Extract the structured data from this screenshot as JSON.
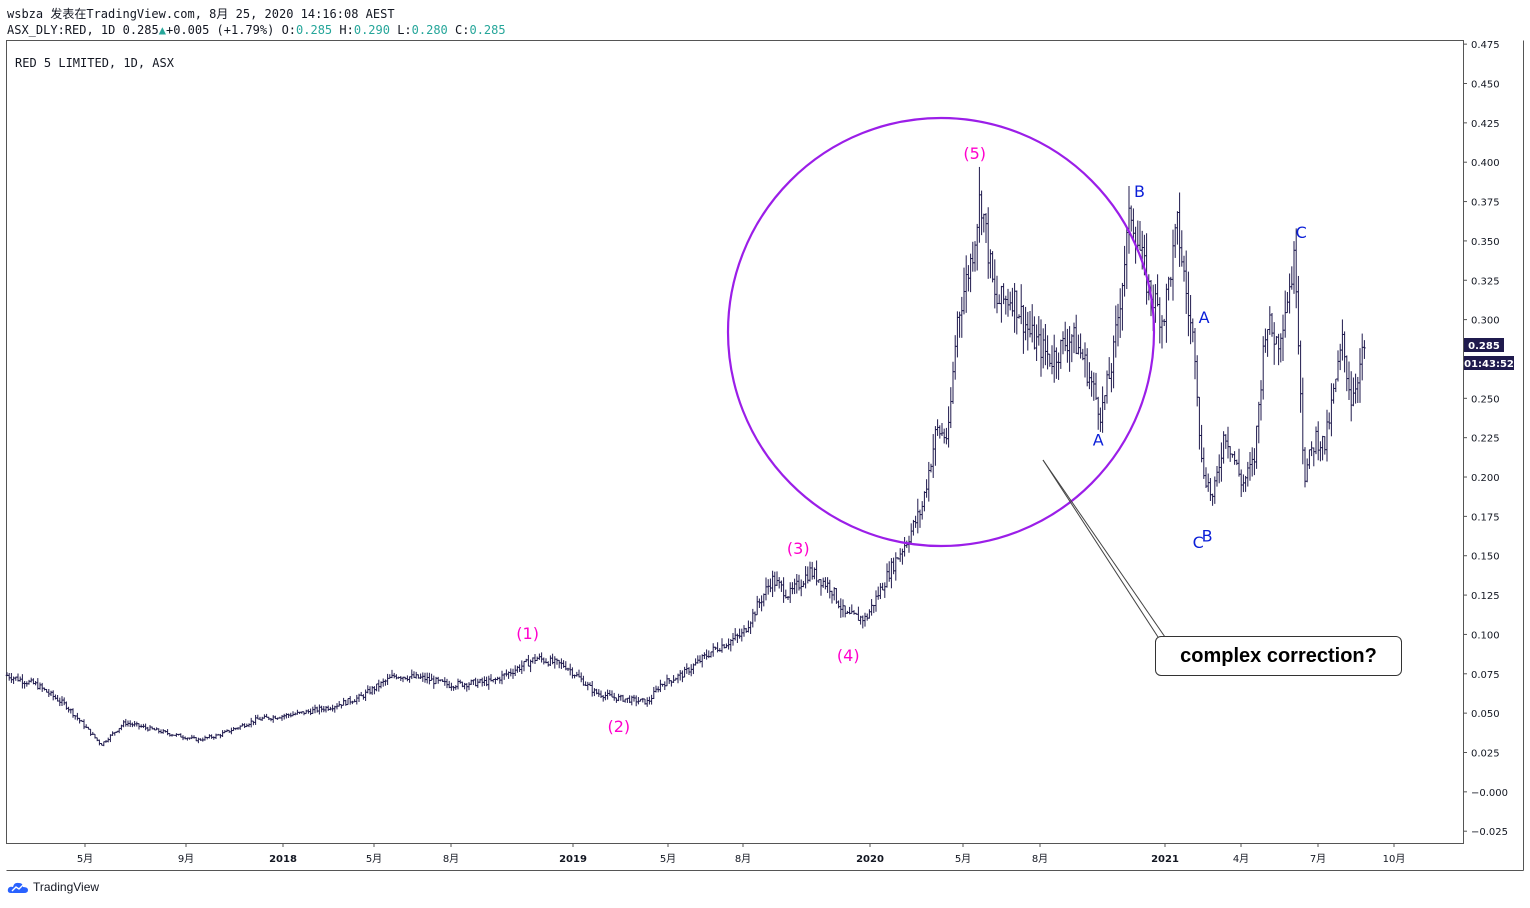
{
  "header": {
    "line1": "wsbza 发表在TradingView.com, 8月 25, 2020 14:16:08 AEST",
    "symbol": "ASX_DLY:RED, 1D",
    "last": "0.285",
    "change": "+0.005 (+1.79%)",
    "o_label": "O:",
    "o": "0.285",
    "h_label": "H:",
    "h": "0.290",
    "l_label": "L:",
    "l": "0.280",
    "c_label": "C:",
    "c": "0.285"
  },
  "footer": {
    "brand": "TradingView"
  },
  "colors": {
    "candles": "#1f1a4d",
    "wave_labels": "#ff00cc",
    "abc_labels": "#0b1fd8",
    "circle": "#9b1ee8",
    "price_tag": "#1f1a4d"
  },
  "chart_data": {
    "type": "bar",
    "title": "RED 5 LIMITED, 1D, ASX",
    "x_ticks": [
      "5月",
      "9月",
      "2018",
      "5月",
      "8月",
      "2019",
      "5月",
      "8月",
      "2020",
      "5月",
      "8月",
      "2021",
      "4月",
      "7月",
      "10月"
    ],
    "y_ticks": [
      "0.475",
      "0.450",
      "0.425",
      "0.400",
      "0.375",
      "0.350",
      "0.325",
      "0.300",
      "0.275",
      "0.250",
      "0.225",
      "0.200",
      "0.175",
      "0.150",
      "0.125",
      "0.100",
      "0.075",
      "0.050",
      "0.025",
      "−0.000",
      "−0.025"
    ],
    "ylim": [
      -0.0325,
      0.477
    ],
    "time_range": [
      2016.9,
      2021.85
    ],
    "price_tag": "0.285",
    "countdown": "01:43:52",
    "series": [
      {
        "points": [
          [
            2016.9,
            0.074
          ],
          [
            2017.0,
            0.068
          ],
          [
            2017.1,
            0.055
          ],
          [
            2017.22,
            0.03
          ],
          [
            2017.3,
            0.044
          ],
          [
            2017.45,
            0.037
          ],
          [
            2017.55,
            0.033
          ],
          [
            2017.62,
            0.036
          ],
          [
            2017.75,
            0.046
          ],
          [
            2017.9,
            0.05
          ],
          [
            2018.0,
            0.054
          ],
          [
            2018.1,
            0.06
          ],
          [
            2018.15,
            0.066
          ],
          [
            2018.22,
            0.074
          ],
          [
            2018.32,
            0.072
          ],
          [
            2018.4,
            0.068
          ],
          [
            2018.55,
            0.07
          ],
          [
            2018.62,
            0.077
          ],
          [
            2018.7,
            0.085
          ],
          [
            2018.8,
            0.08
          ],
          [
            2018.9,
            0.063
          ],
          [
            2018.96,
            0.06
          ],
          [
            2019.08,
            0.057
          ],
          [
            2019.12,
            0.068
          ],
          [
            2019.2,
            0.075
          ],
          [
            2019.3,
            0.09
          ],
          [
            2019.4,
            0.1
          ],
          [
            2019.5,
            0.135
          ],
          [
            2019.56,
            0.125
          ],
          [
            2019.63,
            0.14
          ],
          [
            2019.7,
            0.13
          ],
          [
            2019.75,
            0.112
          ],
          [
            2019.82,
            0.11
          ],
          [
            2019.9,
            0.14
          ],
          [
            2019.96,
            0.16
          ],
          [
            2020.01,
            0.18
          ],
          [
            2020.06,
            0.23
          ],
          [
            2020.1,
            0.225
          ],
          [
            2020.13,
            0.3
          ],
          [
            2020.18,
            0.34
          ],
          [
            2020.21,
            0.38
          ],
          [
            2020.26,
            0.31
          ],
          [
            2020.32,
            0.315
          ],
          [
            2020.38,
            0.29
          ],
          [
            2020.45,
            0.275
          ],
          [
            2020.52,
            0.29
          ],
          [
            2020.56,
            0.275
          ],
          [
            2020.62,
            0.24
          ],
          [
            2020.66,
            0.275
          ],
          [
            2020.72,
            0.37
          ],
          [
            2020.78,
            0.32
          ],
          [
            2020.83,
            0.3
          ],
          [
            2020.88,
            0.36
          ],
          [
            2020.92,
            0.3
          ],
          [
            2020.94,
            0.28
          ],
          [
            2020.96,
            0.21
          ],
          [
            2021.0,
            0.185
          ],
          [
            2021.04,
            0.23
          ],
          [
            2021.1,
            0.195
          ],
          [
            2021.14,
            0.21
          ],
          [
            2021.18,
            0.3
          ],
          [
            2021.22,
            0.285
          ],
          [
            2021.28,
            0.34
          ],
          [
            2021.31,
            0.2
          ],
          [
            2021.35,
            0.225
          ],
          [
            2021.38,
            0.22
          ],
          [
            2021.44,
            0.285
          ],
          [
            2021.47,
            0.25
          ],
          [
            2021.52,
            0.285
          ]
        ]
      }
    ],
    "annotations": [
      {
        "text": "(1)",
        "t": 2018.67,
        "y": 0.097,
        "kind": "wave"
      },
      {
        "text": "(2)",
        "t": 2018.98,
        "y": 0.038,
        "kind": "wave"
      },
      {
        "text": "(3)",
        "t": 2019.59,
        "y": 0.151,
        "kind": "wave"
      },
      {
        "text": "(4)",
        "t": 2019.76,
        "y": 0.083,
        "kind": "wave"
      },
      {
        "text": "(5)",
        "t": 2020.19,
        "y": 0.402,
        "kind": "wave"
      },
      {
        "text": "A",
        "t": 2020.61,
        "y": 0.22,
        "kind": "abc"
      },
      {
        "text": "B",
        "t": 2020.75,
        "y": 0.378,
        "kind": "abc"
      },
      {
        "text": "A",
        "t": 2020.97,
        "y": 0.298,
        "kind": "abc"
      },
      {
        "text": "C",
        "t": 2020.95,
        "y": 0.155,
        "kind": "abc"
      },
      {
        "text": "B",
        "t": 2020.98,
        "y": 0.159,
        "kind": "abc"
      },
      {
        "text": "C",
        "t": 2021.3,
        "y": 0.352,
        "kind": "abc"
      }
    ],
    "callout": {
      "text": "complex correction?"
    }
  }
}
